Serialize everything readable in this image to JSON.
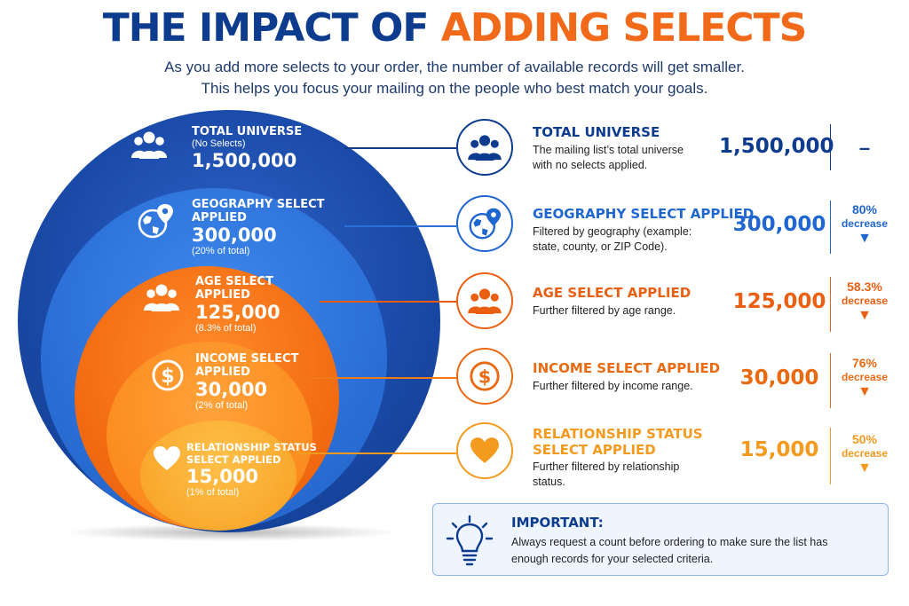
{
  "title": {
    "part1": "THE IMPACT OF ",
    "part2": "ADDING SELECTS"
  },
  "subtitle": [
    "As you add more selects to your order, the number of available records will get smaller.",
    "This helps you focus your mailing on the people who best match your goals."
  ],
  "circles": [
    {
      "icon": "people-icon",
      "heading_lines": [
        "TOTAL UNIVERSE"
      ],
      "sub": "(No Selects)",
      "count": "1,500,000",
      "pct_note": ""
    },
    {
      "icon": "globe-pin-icon",
      "heading_lines": [
        "GEOGRAPHY SELECT",
        "APPLIED"
      ],
      "sub": "",
      "count": "300,000",
      "pct_note": "(20% of total)"
    },
    {
      "icon": "people-icon",
      "heading_lines": [
        "AGE SELECT",
        "APPLIED"
      ],
      "sub": "",
      "count": "125,000",
      "pct_note": "(8.3% of total)"
    },
    {
      "icon": "dollar-icon",
      "heading_lines": [
        "INCOME SELECT",
        "APPLIED"
      ],
      "sub": "",
      "count": "30,000",
      "pct_note": "(2% of total)"
    },
    {
      "icon": "heart-icon",
      "heading_lines": [
        "RELATIONSHIP STATUS",
        "SELECT APPLIED"
      ],
      "sub": "",
      "count": "15,000",
      "pct_note": "(1% of total)"
    }
  ],
  "rows": [
    {
      "title_lines": [
        "TOTAL UNIVERSE"
      ],
      "desc": "The mailing list’s total universe with no selects applied.",
      "count": "1,500,000",
      "change": "–",
      "change_label": "",
      "color": "#0d3c8f"
    },
    {
      "title_lines": [
        "GEOGRAPHY SELECT APPLIED"
      ],
      "desc": "Filtered by geography (example: state, county, or ZIP Code).",
      "count": "300,000",
      "change": "80%",
      "change_label": "decrease",
      "color": "#1f66d1"
    },
    {
      "title_lines": [
        "AGE SELECT APPLIED"
      ],
      "desc": "Further filtered by age range.",
      "count": "125,000",
      "change": "58.3%",
      "change_label": "decrease",
      "color": "#ea5f12"
    },
    {
      "title_lines": [
        "INCOME SELECT APPLIED"
      ],
      "desc": "Further filtered by income range.",
      "count": "30,000",
      "change": "76%",
      "change_label": "decrease",
      "color": "#ea6a12"
    },
    {
      "title_lines": [
        "RELATIONSHIP STATUS",
        "SELECT APPLIED"
      ],
      "desc": "Further filtered by relationship status.",
      "count": "15,000",
      "change": "50%",
      "change_label": "decrease",
      "color": "#f39a1f"
    }
  ],
  "note": {
    "heading": "IMPORTANT:",
    "text": "Always request a count before ordering to make sure the list has enough records for your selected criteria.",
    "icon": "lightbulb-icon"
  }
}
